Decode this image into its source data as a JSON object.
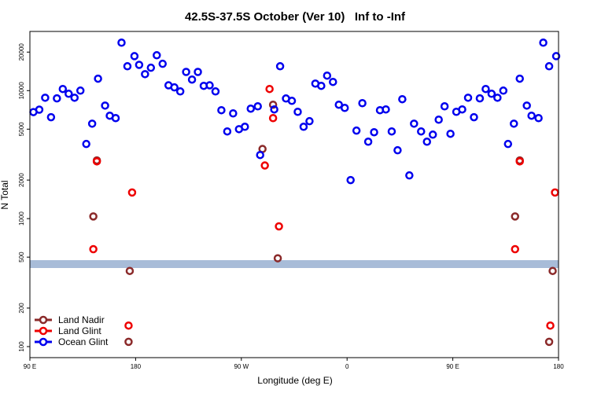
{
  "chart_data": {
    "type": "scatter",
    "title": "42.5S-37.5S October (Ver 10)   Inf to -Inf",
    "x_label": "Longitude (deg E)",
    "y_label": "N Total",
    "ylog": true,
    "legend": "bottom-left",
    "xlim": [
      90,
      540
    ],
    "xticks": [
      {
        "value": 90,
        "label": "90 E"
      },
      180,
      {
        "value": 270,
        "label": "90 W"
      },
      {
        "value": 360,
        "label": "0"
      },
      {
        "value": 450,
        "label": "90 E"
      },
      {
        "value": 540,
        "label": "180"
      }
    ],
    "ylim": [
      82,
      29000
    ],
    "yticks": [
      100,
      200,
      500,
      1000,
      2000,
      5000,
      10000,
      20000
    ],
    "series": [
      {
        "name": "Land Nadir",
        "color": "#8b2a2a",
        "x": [
          147,
          144,
          175,
          174,
          288,
          297,
          301,
          507,
          503,
          535,
          532
        ],
        "values": [
          2850,
          1040,
          390,
          109,
          3500,
          7760,
          490,
          2850,
          1040,
          390,
          109
        ]
      },
      {
        "name": "Land Glint",
        "color": "#ee0000",
        "x": [
          147,
          177,
          144,
          174,
          290,
          294,
          297,
          302,
          507,
          537,
          503,
          533
        ],
        "values": [
          2800,
          1600,
          577,
          146,
          2600,
          10300,
          6100,
          870,
          2800,
          1600,
          577,
          146
        ]
      },
      {
        "name": "Ocean Glint",
        "color": "#0000ee",
        "x": [
          93,
          98,
          103,
          108,
          113,
          118,
          123,
          128,
          133,
          138,
          143,
          148,
          154,
          158,
          163,
          168,
          173,
          179,
          183,
          188,
          193,
          198,
          203,
          208,
          213,
          218,
          223,
          228,
          233,
          238,
          243,
          248,
          253,
          258,
          263,
          268,
          273,
          278,
          284,
          286,
          298,
          303,
          308,
          313,
          318,
          323,
          328,
          333,
          338,
          343,
          348,
          353,
          358,
          363,
          368,
          373,
          378,
          383,
          388,
          393,
          398,
          403,
          407,
          413,
          417,
          423,
          428,
          433,
          438,
          443,
          448,
          453,
          458,
          463,
          468,
          473,
          478,
          483,
          488,
          493,
          497,
          502,
          507,
          513,
          517,
          523,
          527,
          532,
          538
        ],
        "values": [
          6800,
          7100,
          8800,
          6200,
          8700,
          10300,
          9450,
          8800,
          10000,
          3830,
          5520,
          12400,
          7640,
          6370,
          6100,
          23700,
          15500,
          18600,
          15900,
          13450,
          15100,
          18900,
          16200,
          11000,
          10600,
          9860,
          14000,
          12200,
          14000,
          10900,
          11000,
          9860,
          7030,
          4800,
          6640,
          5000,
          5220,
          7230,
          7540,
          3140,
          7130,
          15500,
          8680,
          8320,
          6830,
          5220,
          5770,
          11350,
          10900,
          13100,
          11700,
          7760,
          7330,
          2000,
          4870,
          7980,
          3990,
          4730,
          7030,
          7130,
          4800,
          3420,
          8570,
          2175,
          5520,
          4800,
          3990,
          4530,
          5930,
          7540,
          4600,
          6830,
          7130,
          8800,
          6200,
          8700,
          10300,
          9450,
          8800,
          10000,
          3830,
          5520,
          12400,
          7640,
          6370,
          6100,
          23700,
          15500,
          18600
        ]
      }
    ]
  }
}
